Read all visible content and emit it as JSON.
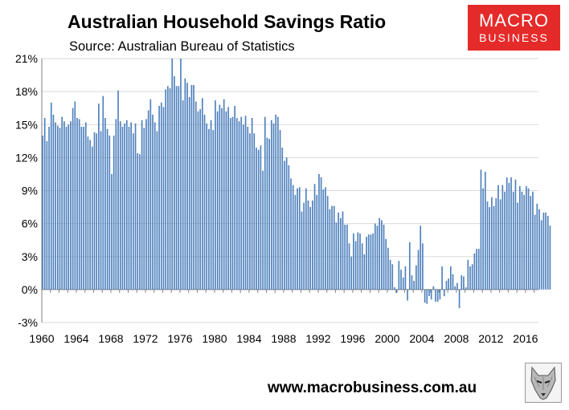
{
  "header": {
    "title": "Australian Household Savings Ratio",
    "subtitle": "Source: Australian Bureau of Statistics"
  },
  "logo": {
    "line1": "MACRO",
    "line2": "BUSINESS",
    "color": "#e52a2a"
  },
  "footer": {
    "website": "www.macrobusiness.com.au",
    "badge_icon": "wolf-icon"
  },
  "chart_data": {
    "type": "bar",
    "title": "Australian Household Savings Ratio",
    "xlabel": "",
    "ylabel": "",
    "ylim": [
      -3,
      21
    ],
    "xlim": [
      1960,
      2017.5
    ],
    "yticks": [
      "-3%",
      "0%",
      "3%",
      "6%",
      "9%",
      "12%",
      "15%",
      "18%",
      "21%"
    ],
    "xticks": [
      "1960",
      "1964",
      "1968",
      "1972",
      "1976",
      "1980",
      "1984",
      "1988",
      "1992",
      "1996",
      "2000",
      "2004",
      "2008",
      "2012",
      "2016"
    ],
    "grid": true,
    "bar_color": "#4f81bd",
    "frequency": "quarterly",
    "x_start": 1960.0,
    "values": [
      14.0,
      15.6,
      13.5,
      14.8,
      17.0,
      15.9,
      15.2,
      14.9,
      14.7,
      15.7,
      15.3,
      14.8,
      15.0,
      15.3,
      16.5,
      17.1,
      15.6,
      15.5,
      14.8,
      14.8,
      15.2,
      13.9,
      13.6,
      13.0,
      14.3,
      14.2,
      16.9,
      14.4,
      17.6,
      15.6,
      14.6,
      14.0,
      10.5,
      14.0,
      15.5,
      18.1,
      15.3,
      14.8,
      15.1,
      15.4,
      14.8,
      15.2,
      14.2,
      15.1,
      12.4,
      12.3,
      15.4,
      14.7,
      15.5,
      16.3,
      17.3,
      15.9,
      15.2,
      14.4,
      16.7,
      17.0,
      16.6,
      18.2,
      18.5,
      18.3,
      21.0,
      19.4,
      18.5,
      18.5,
      21.0,
      17.2,
      19.2,
      18.8,
      17.5,
      18.6,
      18.6,
      17.1,
      16.2,
      16.4,
      17.4,
      15.9,
      15.1,
      14.6,
      15.4,
      14.5,
      17.2,
      16.2,
      16.8,
      16.5,
      17.3,
      16.2,
      16.6,
      15.6,
      15.7,
      16.7,
      15.6,
      15.3,
      15.7,
      15.0,
      15.8,
      14.8,
      14.2,
      15.6,
      14.2,
      12.9,
      12.7,
      13.1,
      10.8,
      15.7,
      13.8,
      13.7,
      15.4,
      15.1,
      15.9,
      15.7,
      14.5,
      12.9,
      11.7,
      12.0,
      11.3,
      10.1,
      9.5,
      8.6,
      9.2,
      9.3,
      7.1,
      7.9,
      9.2,
      8.1,
      7.5,
      8.1,
      9.6,
      8.6,
      10.5,
      10.2,
      9.1,
      9.3,
      8.5,
      7.3,
      7.6,
      7.6,
      6.1,
      7.0,
      6.5,
      7.1,
      5.9,
      5.9,
      4.2,
      3.0,
      5.1,
      4.4,
      5.2,
      5.1,
      4.2,
      3.2,
      4.8,
      5.0,
      5.0,
      5.1,
      6.0,
      5.8,
      6.5,
      6.3,
      5.9,
      4.6,
      3.8,
      2.7,
      2.3,
      0.2,
      -0.3,
      2.6,
      1.8,
      1.1,
      2.1,
      -1.0,
      4.3,
      1.3,
      0.8,
      2.2,
      3.6,
      5.8,
      4.2,
      -1.2,
      -1.3,
      -0.6,
      -0.9,
      0.3,
      -1.1,
      -1.1,
      -0.9,
      2.1,
      -0.6,
      0.8,
      1.0,
      2.1,
      1.4,
      0.3,
      0.6,
      -1.7,
      1.3,
      1.2,
      0.2,
      2.7,
      2.1,
      2.3,
      3.3,
      3.7,
      3.7,
      10.9,
      9.2,
      10.7,
      8.0,
      7.5,
      8.4,
      7.6,
      8.3,
      9.5,
      8.2,
      9.5,
      8.9,
      10.2,
      9.7,
      10.2,
      8.9,
      10.0,
      7.9,
      9.4,
      8.9,
      8.6,
      9.4,
      9.2,
      8.5,
      8.9,
      6.8,
      7.8,
      7.3,
      6.3,
      7.0,
      7.0,
      6.7,
      5.8
    ]
  }
}
